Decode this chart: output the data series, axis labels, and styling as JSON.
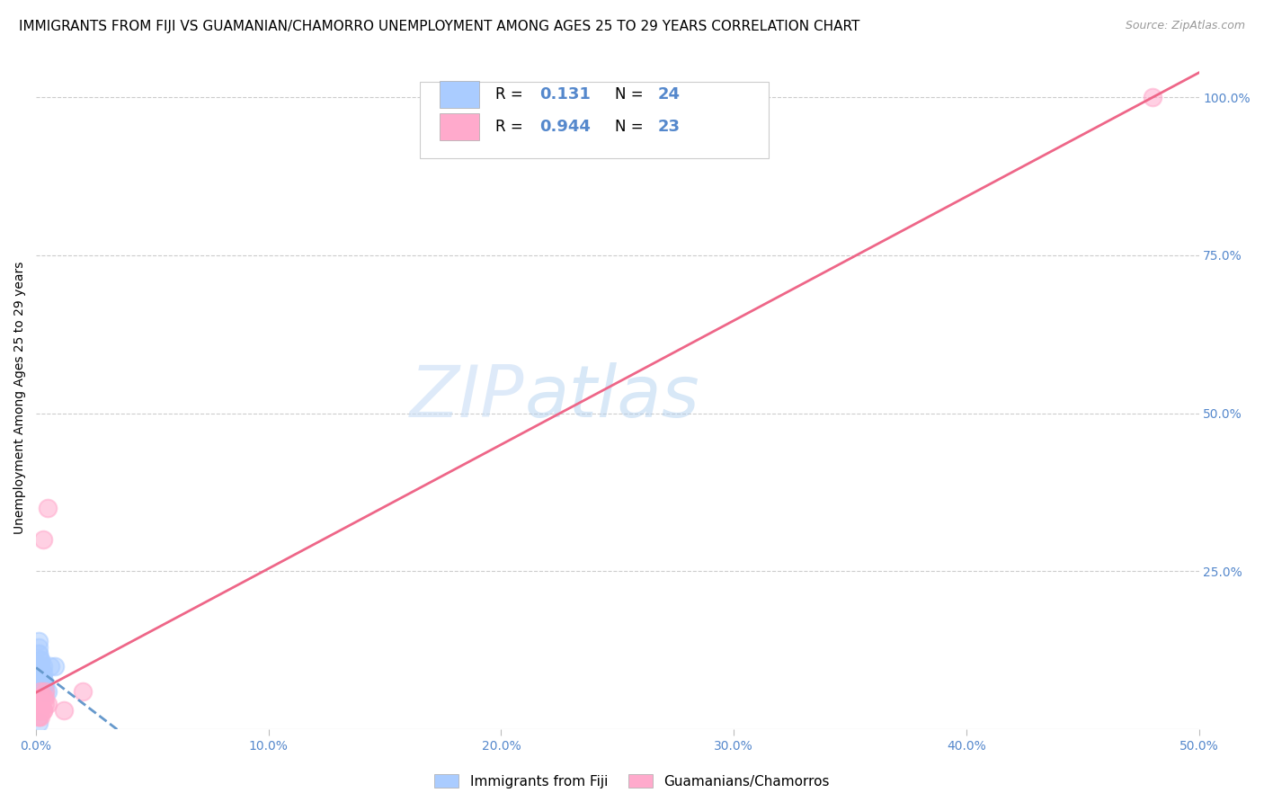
{
  "title": "IMMIGRANTS FROM FIJI VS GUAMANIAN/CHAMORRO UNEMPLOYMENT AMONG AGES 25 TO 29 YEARS CORRELATION CHART",
  "source": "Source: ZipAtlas.com",
  "ylabel": "Unemployment Among Ages 25 to 29 years",
  "watermark": "ZIPatlas",
  "fiji_R": 0.131,
  "fiji_N": 24,
  "guam_R": 0.944,
  "guam_N": 23,
  "fiji_color": "#aaccff",
  "fiji_line_color": "#6699cc",
  "guam_color": "#ffaacc",
  "guam_line_color": "#ee6688",
  "fiji_scatter_x": [
    0.001,
    0.002,
    0.003,
    0.001,
    0.002,
    0.004,
    0.003,
    0.002,
    0.001,
    0.005,
    0.003,
    0.002,
    0.001,
    0.003,
    0.002,
    0.001,
    0.004,
    0.006,
    0.003,
    0.001,
    0.008,
    0.002,
    0.001,
    0.003
  ],
  "fiji_scatter_y": [
    0.12,
    0.1,
    0.08,
    0.14,
    0.11,
    0.07,
    0.1,
    0.09,
    0.13,
    0.06,
    0.09,
    0.11,
    0.08,
    0.07,
    0.1,
    0.12,
    0.06,
    0.1,
    0.08,
    0.09,
    0.1,
    0.08,
    0.01,
    0.07
  ],
  "guam_scatter_x": [
    0.001,
    0.002,
    0.003,
    0.001,
    0.002,
    0.004,
    0.003,
    0.002,
    0.001,
    0.005,
    0.003,
    0.002,
    0.001,
    0.005,
    0.003,
    0.001,
    0.004,
    0.012,
    0.02,
    0.001,
    0.48,
    0.004,
    0.002
  ],
  "guam_scatter_y": [
    0.04,
    0.03,
    0.05,
    0.02,
    0.04,
    0.06,
    0.03,
    0.05,
    0.02,
    0.04,
    0.03,
    0.06,
    0.05,
    0.35,
    0.3,
    0.04,
    0.05,
    0.03,
    0.06,
    0.03,
    1.0,
    0.04,
    0.02
  ],
  "xlim": [
    0.0,
    0.5
  ],
  "ylim": [
    0.0,
    1.05
  ],
  "xticks": [
    0.0,
    0.1,
    0.2,
    0.3,
    0.4,
    0.5
  ],
  "yticks_right": [
    0.0,
    0.25,
    0.5,
    0.75,
    1.0
  ],
  "ytick_labels_right": [
    "",
    "25.0%",
    "50.0%",
    "75.0%",
    "100.0%"
  ],
  "xtick_labels": [
    "0.0%",
    "10.0%",
    "20.0%",
    "30.0%",
    "40.0%",
    "50.0%"
  ],
  "background_color": "#ffffff",
  "grid_color": "#cccccc",
  "title_fontsize": 11,
  "label_fontsize": 10,
  "tick_color": "#5588cc",
  "legend_fiji_label": "Immigrants from Fiji",
  "legend_guam_label": "Guamanians/Chamorros"
}
